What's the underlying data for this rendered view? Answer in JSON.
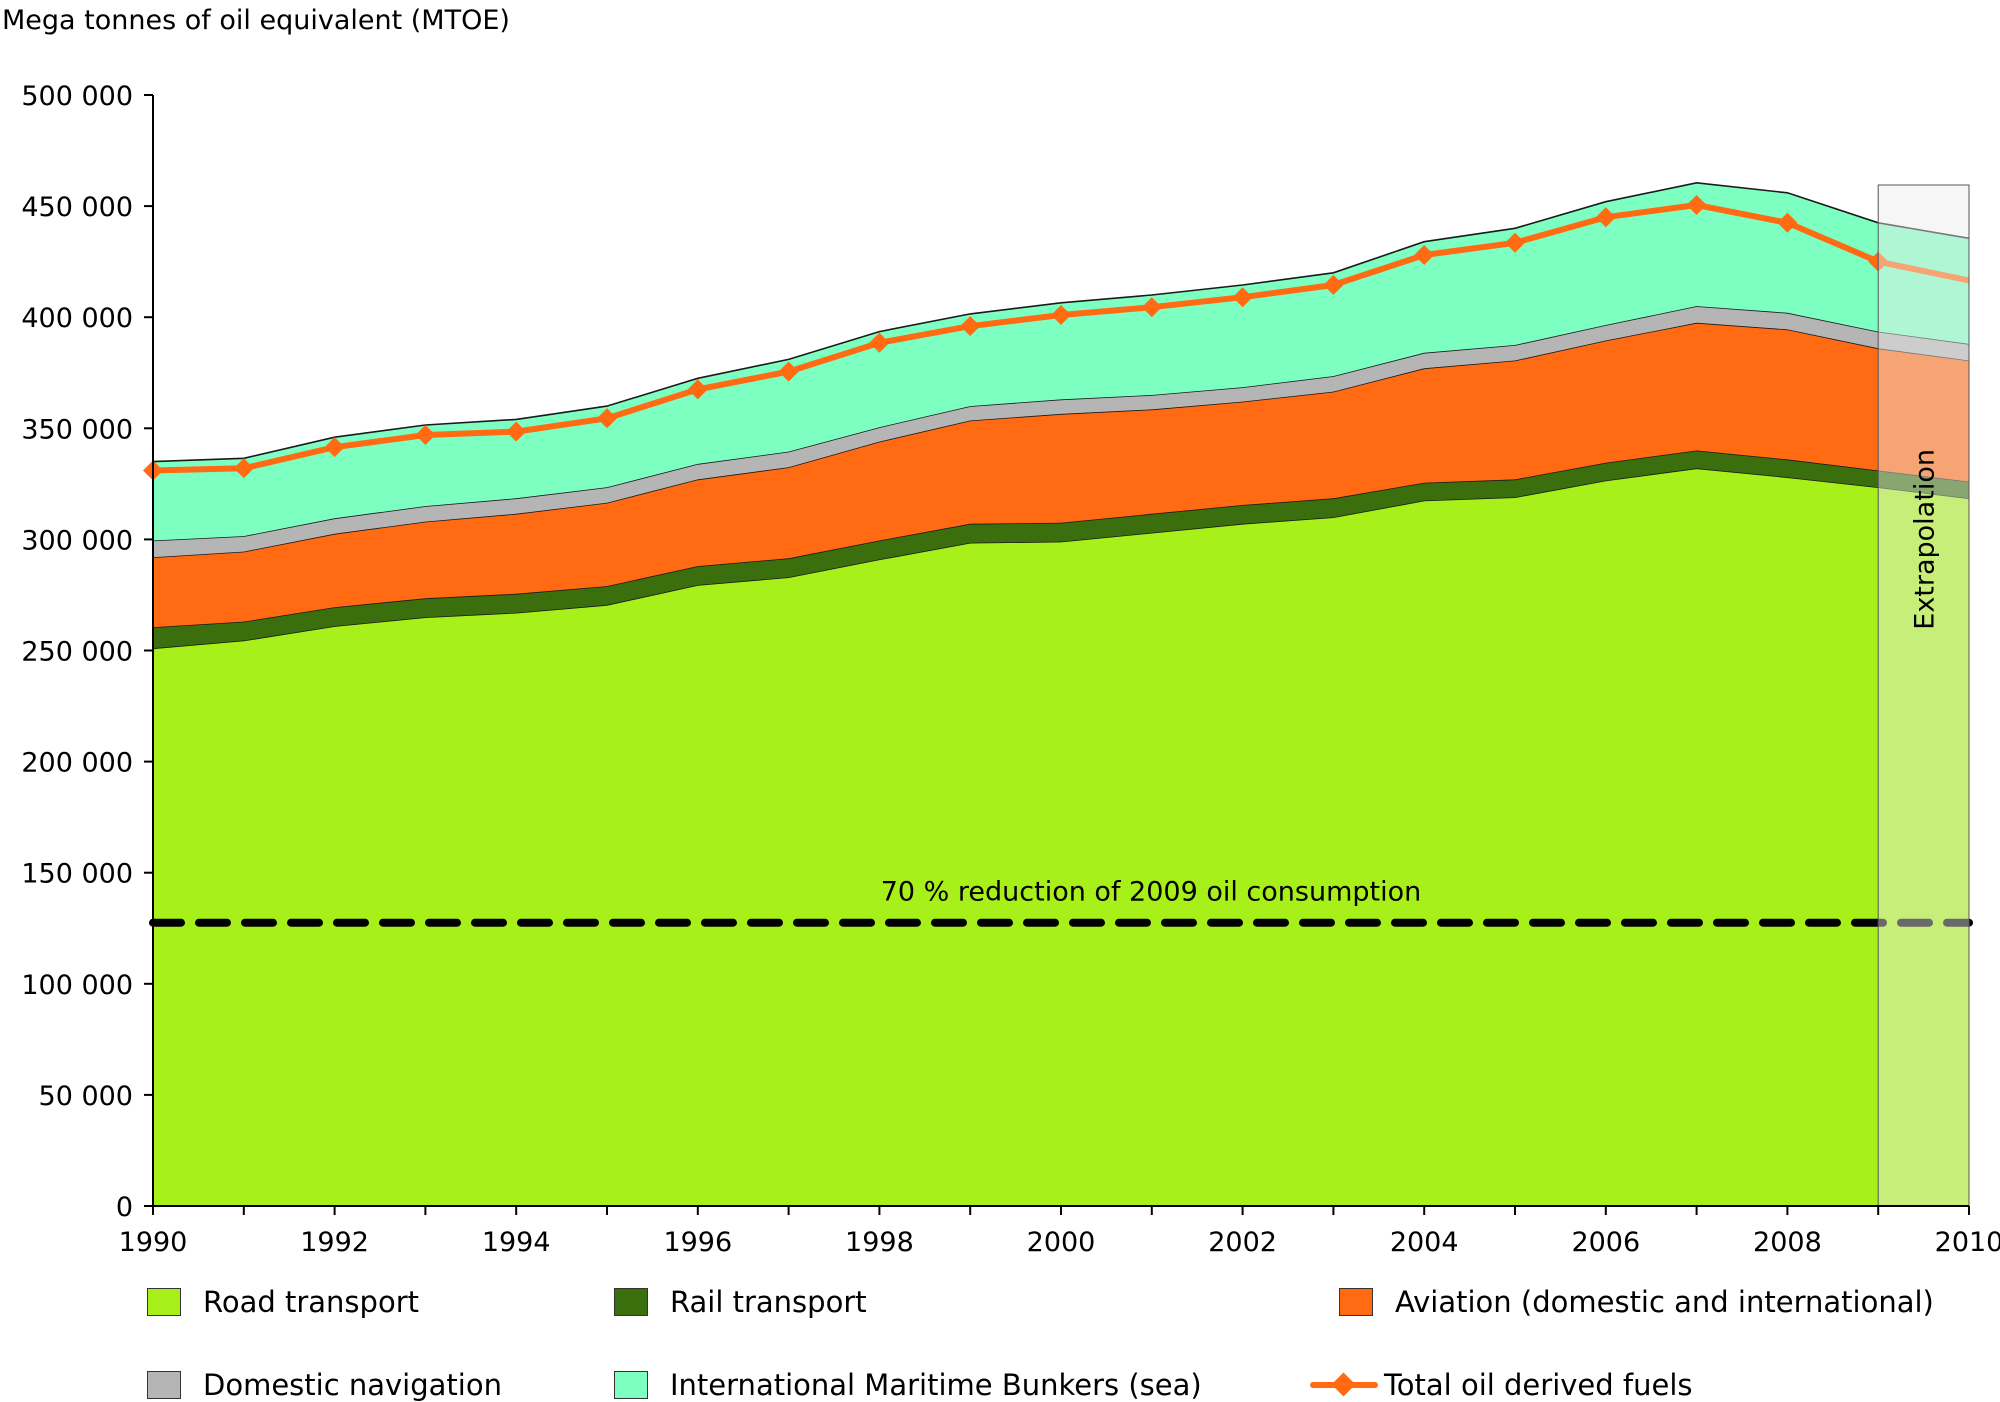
{
  "chart_data": {
    "type": "area",
    "stacked": true,
    "ylabel": "Mega tonnes of oil equivalent (MTOE)",
    "xlabel": "",
    "xlim": [
      1990,
      2010
    ],
    "ylim": [
      0,
      500000
    ],
    "x": [
      1990,
      1991,
      1992,
      1993,
      1994,
      1995,
      1996,
      1997,
      1998,
      1999,
      2000,
      2001,
      2002,
      2003,
      2004,
      2005,
      2006,
      2007,
      2008,
      2009,
      2010
    ],
    "x_ticks": [
      "1990",
      "1992",
      "1994",
      "1996",
      "1998",
      "2000",
      "2002",
      "2004",
      "2006",
      "2008",
      "2010"
    ],
    "y_ticks": [
      "0",
      "50 000",
      "100 000",
      "150 000",
      "200 000",
      "250 000",
      "300 000",
      "350 000",
      "400 000",
      "450 000",
      "500 000"
    ],
    "grid": false,
    "legend_position": "bottom",
    "series": [
      {
        "name": "Road transport",
        "color": "#a8f01a",
        "values": [
          251000,
          254500,
          261000,
          265000,
          267000,
          270500,
          279500,
          283000,
          291000,
          298500,
          299000,
          303000,
          307000,
          310000,
          317500,
          319000,
          326500,
          332000,
          328000,
          323500,
          318500
        ]
      },
      {
        "name": "Rail transport",
        "color": "#3b6e0c",
        "values": [
          9500,
          8500,
          8500,
          8500,
          8500,
          8500,
          8500,
          8500,
          8500,
          8500,
          8500,
          8500,
          8500,
          8500,
          8000,
          8000,
          8000,
          8000,
          8000,
          7500,
          7500
        ]
      },
      {
        "name": "Aviation (domestic and international)",
        "color": "#ff6a13",
        "values": [
          31500,
          31500,
          33000,
          34500,
          36000,
          37500,
          39000,
          41000,
          44500,
          46500,
          49000,
          47000,
          46500,
          48000,
          51500,
          53500,
          55000,
          57500,
          58500,
          55000,
          54500
        ]
      },
      {
        "name": "Domestic navigation",
        "color": "#b5b5b5",
        "values": [
          7500,
          7000,
          7000,
          7000,
          7000,
          7000,
          7000,
          7000,
          6500,
          6500,
          6500,
          6500,
          6500,
          7000,
          7000,
          7000,
          7000,
          7500,
          7500,
          7500,
          7500
        ]
      },
      {
        "name": "International Maritime Bunkers (sea)",
        "color": "#7dffc2",
        "values": [
          35500,
          35000,
          36500,
          36500,
          35500,
          36500,
          38500,
          41500,
          43000,
          41500,
          43500,
          45000,
          46000,
          46500,
          50000,
          52500,
          55500,
          55500,
          54000,
          49000,
          47500
        ]
      }
    ],
    "line_series": [
      {
        "name": "Total oil derived fuels",
        "color": "#ff6a13",
        "values": [
          331000,
          332000,
          341500,
          347000,
          348500,
          354500,
          367500,
          375500,
          388500,
          396000,
          401000,
          404500,
          409000,
          414500,
          428000,
          433500,
          445000,
          450500,
          442500,
          425000,
          416500
        ]
      }
    ],
    "reference_line": {
      "value": 127500,
      "label": "70 % reduction of 2009 oil consumption"
    },
    "extrapolation": {
      "from": 2009,
      "to": 2010,
      "label": "Extrapolation"
    }
  }
}
